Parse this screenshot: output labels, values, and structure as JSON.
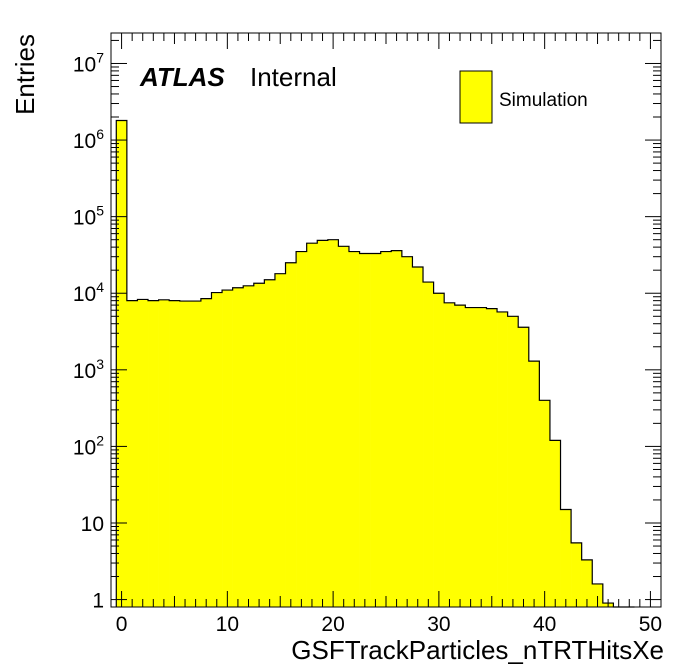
{
  "chart_data": {
    "type": "bar",
    "histogram": true,
    "xlabel": "GSFTrackParticles_nTRTHitsXe",
    "ylabel": "Entries",
    "xlim": [
      -1,
      51
    ],
    "ylim": [
      0.8,
      25000000
    ],
    "yscale": "log",
    "bin_width": 1,
    "x_ticks": [
      0,
      10,
      20,
      30,
      40,
      50
    ],
    "y_ticks": [
      {
        "value": 1,
        "base": "1",
        "exp": ""
      },
      {
        "value": 10,
        "base": "10",
        "exp": ""
      },
      {
        "value": 100,
        "base": "10",
        "exp": "2"
      },
      {
        "value": 1000,
        "base": "10",
        "exp": "3"
      },
      {
        "value": 10000,
        "base": "10",
        "exp": "4"
      },
      {
        "value": 100000,
        "base": "10",
        "exp": "5"
      },
      {
        "value": 1000000,
        "base": "10",
        "exp": "6"
      },
      {
        "value": 10000000,
        "base": "10",
        "exp": "7"
      }
    ],
    "bin_low_edges": [
      -0.5,
      0.5,
      1.5,
      2.5,
      3.5,
      4.5,
      5.5,
      6.5,
      7.5,
      8.5,
      9.5,
      10.5,
      11.5,
      12.5,
      13.5,
      14.5,
      15.5,
      16.5,
      17.5,
      18.5,
      19.5,
      20.5,
      21.5,
      22.5,
      23.5,
      24.5,
      25.5,
      26.5,
      27.5,
      28.5,
      29.5,
      30.5,
      31.5,
      32.5,
      33.5,
      34.5,
      35.5,
      36.5,
      37.5,
      38.5,
      39.5,
      40.5,
      41.5,
      42.5,
      43.5,
      44.5,
      45.5,
      46.5,
      47.5
    ],
    "series": [
      {
        "name": "Simulation",
        "color": "#ffff00",
        "values": [
          1800000,
          8000,
          8300,
          8000,
          8200,
          8000,
          7900,
          7900,
          8500,
          10200,
          11000,
          11800,
          12500,
          13500,
          15000,
          18000,
          25000,
          35000,
          45000,
          49000,
          50000,
          41000,
          35000,
          33000,
          33000,
          35000,
          36000,
          30000,
          22000,
          14000,
          10000,
          7500,
          7000,
          6500,
          6500,
          6300,
          5700,
          5000,
          3600,
          1300,
          400,
          120,
          15,
          5.5,
          3.3,
          1.6,
          0.9,
          0.4,
          0.4
        ]
      }
    ],
    "annotation": {
      "experiment": "ATLAS",
      "status": "Internal"
    },
    "legend_position": "top-right",
    "grid": false
  }
}
